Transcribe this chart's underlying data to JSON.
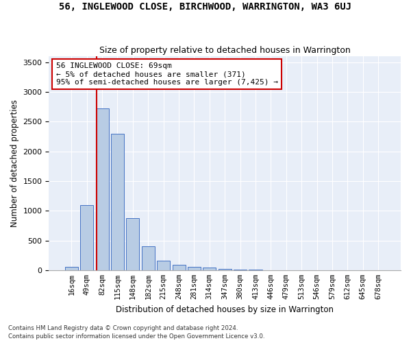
{
  "title": "56, INGLEWOOD CLOSE, BIRCHWOOD, WARRINGTON, WA3 6UJ",
  "subtitle": "Size of property relative to detached houses in Warrington",
  "xlabel": "Distribution of detached houses by size in Warrington",
  "ylabel": "Number of detached properties",
  "bin_labels": [
    "16sqm",
    "49sqm",
    "82sqm",
    "115sqm",
    "148sqm",
    "182sqm",
    "215sqm",
    "248sqm",
    "281sqm",
    "314sqm",
    "347sqm",
    "380sqm",
    "413sqm",
    "446sqm",
    "479sqm",
    "513sqm",
    "546sqm",
    "579sqm",
    "612sqm",
    "645sqm",
    "678sqm"
  ],
  "bar_values": [
    50,
    1090,
    2720,
    2290,
    870,
    400,
    160,
    90,
    55,
    40,
    25,
    10,
    5,
    2,
    0,
    0,
    0,
    0,
    0,
    0,
    0
  ],
  "bar_color": "#b8cce4",
  "bar_edge_color": "#4472c4",
  "property_line_x": 1.62,
  "annotation_text": "56 INGLEWOOD CLOSE: 69sqm\n← 5% of detached houses are smaller (371)\n95% of semi-detached houses are larger (7,425) →",
  "annotation_box_color": "#ffffff",
  "annotation_box_edge": "#cc0000",
  "red_line_color": "#cc0000",
  "ylim": [
    0,
    3600
  ],
  "yticks": [
    0,
    500,
    1000,
    1500,
    2000,
    2500,
    3000,
    3500
  ],
  "background_color": "#e8eef8",
  "footer_line1": "Contains HM Land Registry data © Crown copyright and database right 2024.",
  "footer_line2": "Contains public sector information licensed under the Open Government Licence v3.0."
}
